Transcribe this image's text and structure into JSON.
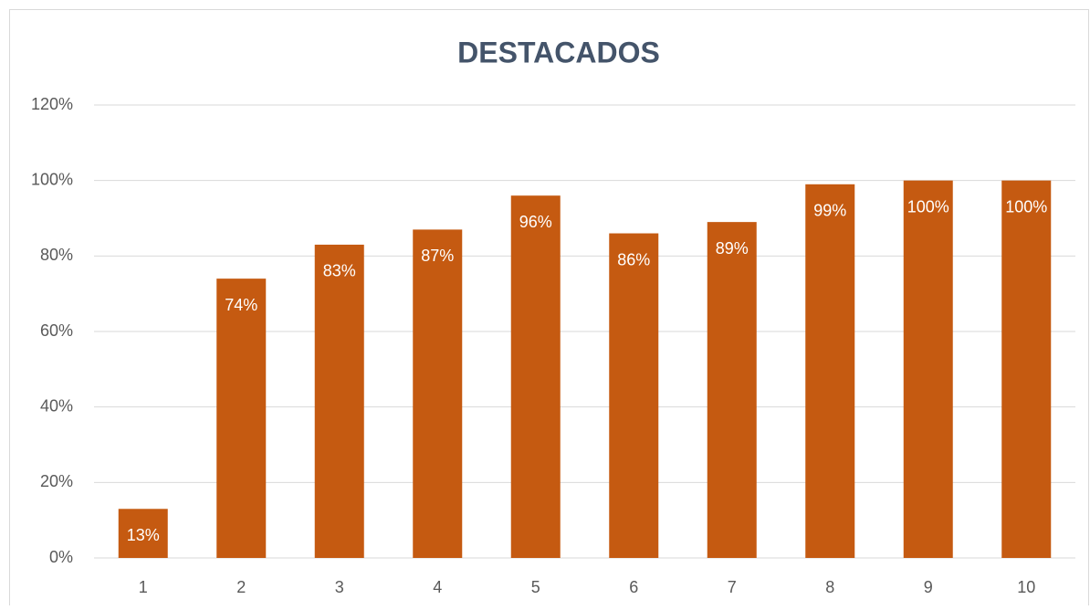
{
  "chart_data": {
    "type": "bar",
    "title": "DESTACADOS",
    "categories": [
      "1",
      "2",
      "3",
      "4",
      "5",
      "6",
      "7",
      "8",
      "9",
      "10"
    ],
    "values": [
      13,
      74,
      83,
      87,
      96,
      86,
      89,
      99,
      100,
      100
    ],
    "value_labels": [
      "13%",
      "74%",
      "83%",
      "87%",
      "96%",
      "86%",
      "89%",
      "99%",
      "100%",
      "100%"
    ],
    "color": "#c55a11",
    "ylim": [
      0,
      120
    ],
    "yticks": [
      {
        "value": 0,
        "label": "0%"
      },
      {
        "value": 20,
        "label": "20%"
      },
      {
        "value": 40,
        "label": "40%"
      },
      {
        "value": 60,
        "label": "60%"
      },
      {
        "value": 80,
        "label": "80%"
      },
      {
        "value": 100,
        "label": "100%"
      },
      {
        "value": 120,
        "label": "120%"
      }
    ],
    "grid": true
  }
}
